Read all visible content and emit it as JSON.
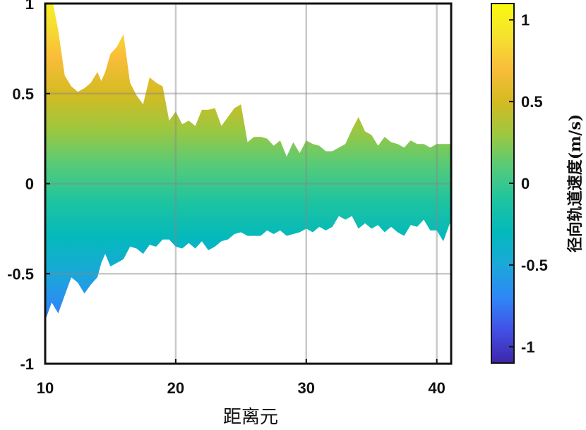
{
  "chart_data": {
    "type": "area",
    "xlabel": "距离元",
    "ylabel": "",
    "xlim": [
      10,
      41.1
    ],
    "ylim": [
      -1,
      1
    ],
    "x_ticks": [
      "10",
      "20",
      "30",
      "40"
    ],
    "y_ticks": [
      "1",
      "0.5",
      "0",
      "-0.5",
      "-1"
    ],
    "grid": true,
    "fill": "colormap gradient by y value",
    "upper_envelope": {
      "x": [
        10,
        10.6,
        11,
        11.5,
        12,
        12.5,
        13,
        13.5,
        14,
        14.3,
        14.6,
        15,
        15.5,
        16,
        16.5,
        17,
        17.5,
        18,
        18.5,
        19,
        19.5,
        20,
        20.5,
        21,
        21.5,
        22,
        22.5,
        23,
        23.5,
        24,
        24.5,
        25,
        25.5,
        26,
        26.5,
        27,
        27.5,
        28,
        28.5,
        29,
        29.5,
        30,
        30.5,
        31,
        31.5,
        32,
        32.5,
        33,
        33.5,
        34,
        34.5,
        35,
        35.5,
        36,
        36.5,
        37,
        37.5,
        38,
        38.5,
        39,
        39.5,
        40,
        40.5,
        41,
        41.1
      ],
      "y": [
        1.0,
        1.0,
        0.85,
        0.6,
        0.54,
        0.51,
        0.53,
        0.56,
        0.62,
        0.57,
        0.62,
        0.72,
        0.76,
        0.83,
        0.56,
        0.49,
        0.44,
        0.59,
        0.56,
        0.54,
        0.35,
        0.4,
        0.33,
        0.35,
        0.32,
        0.41,
        0.41,
        0.42,
        0.32,
        0.37,
        0.42,
        0.44,
        0.23,
        0.26,
        0.26,
        0.25,
        0.21,
        0.24,
        0.15,
        0.23,
        0.17,
        0.24,
        0.22,
        0.21,
        0.18,
        0.18,
        0.2,
        0.22,
        0.3,
        0.37,
        0.29,
        0.27,
        0.21,
        0.26,
        0.23,
        0.22,
        0.2,
        0.24,
        0.22,
        0.22,
        0.2,
        0.22,
        0.22,
        0.22,
        0.24
      ]
    },
    "lower_envelope": {
      "x": [
        10,
        10.5,
        11,
        11.5,
        12,
        12.5,
        13,
        13.5,
        14,
        14.3,
        14.6,
        15,
        15.5,
        16,
        16.5,
        17,
        17.5,
        18,
        18.5,
        19,
        19.5,
        20,
        20.5,
        21,
        21.5,
        22,
        22.5,
        23,
        23.5,
        24,
        24.5,
        25,
        25.5,
        26,
        26.5,
        27,
        27.5,
        28,
        28.5,
        29,
        29.5,
        30,
        30.5,
        31,
        31.5,
        32,
        32.5,
        33,
        33.5,
        34,
        34.5,
        35,
        35.5,
        36,
        36.5,
        37,
        37.5,
        38,
        38.5,
        39,
        39.5,
        40,
        40.5,
        41,
        41.1
      ],
      "y": [
        -0.76,
        -0.66,
        -0.72,
        -0.62,
        -0.52,
        -0.55,
        -0.61,
        -0.56,
        -0.52,
        -0.44,
        -0.39,
        -0.46,
        -0.44,
        -0.42,
        -0.35,
        -0.36,
        -0.39,
        -0.34,
        -0.35,
        -0.31,
        -0.31,
        -0.35,
        -0.36,
        -0.33,
        -0.36,
        -0.32,
        -0.37,
        -0.35,
        -0.32,
        -0.31,
        -0.28,
        -0.27,
        -0.29,
        -0.29,
        -0.29,
        -0.26,
        -0.28,
        -0.26,
        -0.29,
        -0.28,
        -0.27,
        -0.25,
        -0.27,
        -0.24,
        -0.26,
        -0.24,
        -0.18,
        -0.2,
        -0.18,
        -0.25,
        -0.22,
        -0.25,
        -0.23,
        -0.27,
        -0.24,
        -0.27,
        -0.29,
        -0.23,
        -0.24,
        -0.2,
        -0.26,
        -0.26,
        -0.32,
        -0.22,
        -0.25
      ]
    }
  },
  "colorbar": {
    "title": "径向轨道速度(m/s)",
    "range": [
      -1.1,
      1.1
    ],
    "tick_labels": [
      "1",
      "0.5",
      "0",
      "-0.5",
      "-1"
    ],
    "tick_values": [
      1,
      0.5,
      0,
      -0.5,
      -1
    ],
    "colormap": [
      "#3e26a8",
      "#4250e6",
      "#2e87f7",
      "#1aa8d9",
      "#04b9bc",
      "#1ec4a0",
      "#55cb79",
      "#9dc73f",
      "#d4bb22",
      "#f9bd3a",
      "#f5e22e",
      "#f9fb0e"
    ]
  }
}
